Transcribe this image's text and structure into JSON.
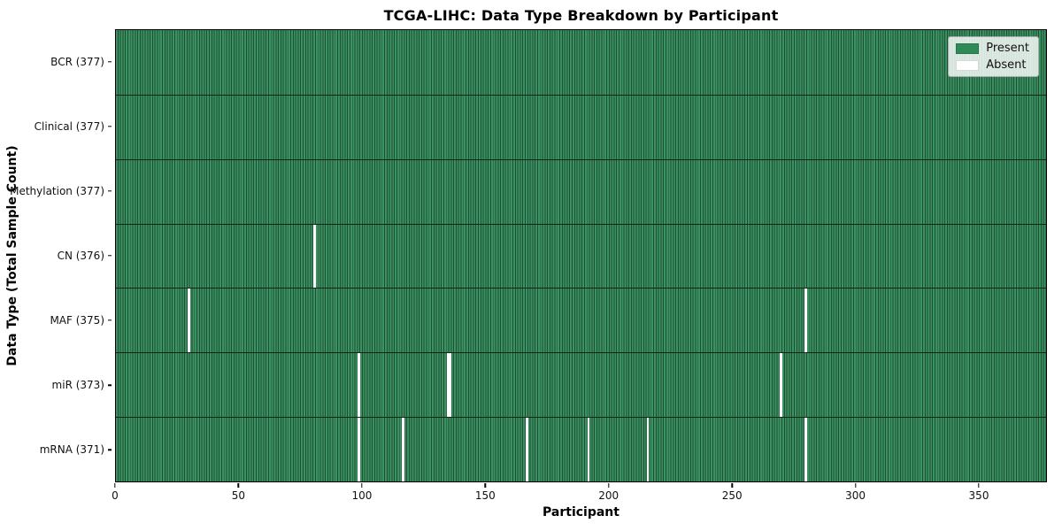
{
  "figure": {
    "title": "TCGA-LIHC: Data Type Breakdown by Participant",
    "xlabel": "Participant",
    "ylabel": "Data Type (Total Sample Count)"
  },
  "legend": {
    "entries": [
      {
        "name": "present",
        "label": "Present",
        "color": "#2e8b57"
      },
      {
        "name": "absent",
        "label": "Absent",
        "color": "#ffffff"
      }
    ]
  },
  "chart_data": {
    "type": "heatmap",
    "title": "TCGA-LIHC: Data Type Breakdown by Participant",
    "xlabel": "Participant",
    "ylabel": "Data Type (Total Sample Count)",
    "n_participants": 377,
    "xlim": [
      0,
      377
    ],
    "x_ticks": [
      0,
      50,
      100,
      150,
      200,
      250,
      300,
      350
    ],
    "grid": false,
    "legend_position": "upper right",
    "cell_states": {
      "present": 1,
      "absent": 0
    },
    "rows": [
      {
        "name": "BCR",
        "label": "BCR (377)",
        "total": 377,
        "absent_participants": []
      },
      {
        "name": "Clinical",
        "label": "Clinical (377)",
        "total": 377,
        "absent_participants": []
      },
      {
        "name": "Methylation",
        "label": "Methylation (377)",
        "total": 377,
        "absent_participants": []
      },
      {
        "name": "CN",
        "label": "CN (376)",
        "total": 376,
        "absent_participants": [
          80
        ]
      },
      {
        "name": "MAF",
        "label": "MAF (375)",
        "total": 375,
        "absent_participants": [
          29,
          279
        ]
      },
      {
        "name": "miR",
        "label": "miR (373)",
        "total": 373,
        "absent_participants": [
          98,
          134,
          135,
          269
        ]
      },
      {
        "name": "mRNA",
        "label": "mRNA (371)",
        "total": 371,
        "absent_participants": [
          98,
          116,
          166,
          191,
          215,
          279
        ]
      }
    ],
    "colors": {
      "present": "#2e8b57",
      "present_stripe_light": "#3b9161",
      "present_stripe_dark": "#1d4f34",
      "absent": "#ffffff",
      "row_divider": "#0d2417"
    }
  }
}
